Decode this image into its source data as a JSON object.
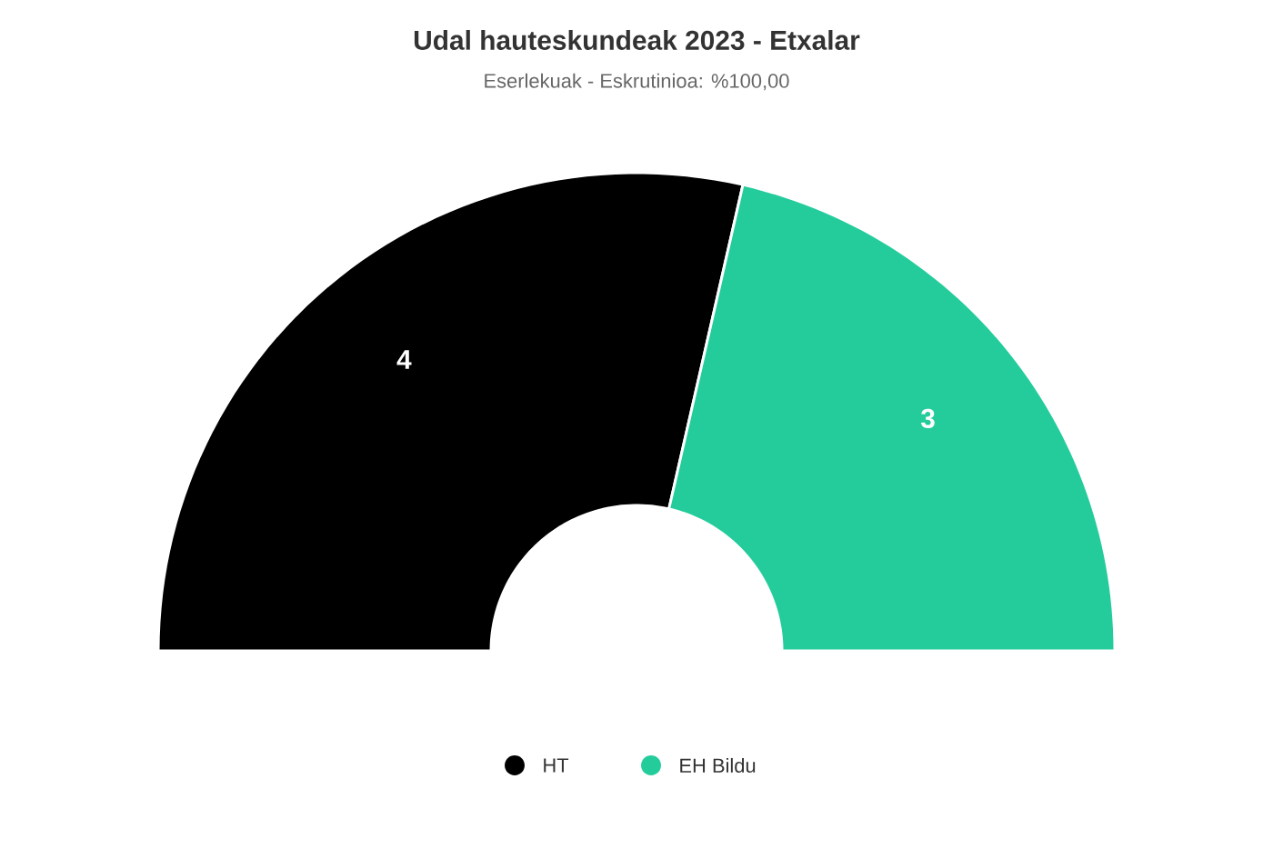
{
  "chart_data": {
    "type": "donut",
    "title": "Udal hauteskundeak 2023 - Etxalar",
    "subtitle": "Eserlekuak - Eskrutinioa: %100,00",
    "categories": [
      "HT",
      "EH Bildu"
    ],
    "values": [
      4,
      3
    ],
    "colors": [
      "#000000",
      "#24cc9c"
    ],
    "data_labels": true,
    "legend": "bottom"
  }
}
